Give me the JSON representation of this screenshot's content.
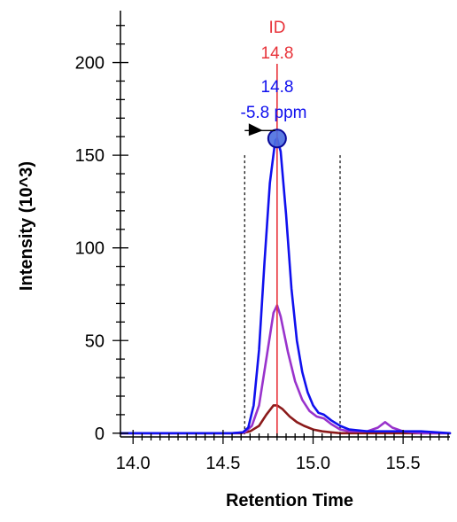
{
  "chart_data": {
    "type": "line",
    "title": "",
    "xlabel": "Retention Time",
    "ylabel": "Intensity (10^3)",
    "xlim": [
      13.93,
      15.76
    ],
    "ylim": [
      -2,
      228
    ],
    "x_ticks": [
      14.0,
      14.5,
      15.0,
      15.5
    ],
    "x_tick_labels": [
      "14.0",
      "14.5",
      "15.0",
      "15.5"
    ],
    "y_ticks": [
      0,
      50,
      100,
      150,
      200
    ],
    "y_tick_labels": [
      "0",
      "50",
      "100",
      "150",
      "200"
    ],
    "grid": false,
    "series": [
      {
        "color": "#1010ee",
        "x": [
          13.93,
          14.55,
          14.61,
          14.64,
          14.67,
          14.7,
          14.73,
          14.76,
          14.79,
          14.8,
          14.82,
          14.85,
          14.88,
          14.91,
          14.94,
          14.97,
          15.0,
          15.03,
          15.06,
          15.1,
          15.15,
          15.2,
          15.3,
          15.4,
          15.5,
          15.6,
          15.76
        ],
        "y": [
          0,
          0,
          0.5,
          3,
          15,
          45,
          92,
          135,
          158,
          159,
          152,
          118,
          78,
          50,
          33,
          22,
          15,
          11,
          10,
          7,
          4,
          2,
          1,
          1,
          1,
          1,
          0
        ]
      },
      {
        "color": "#9933cc",
        "x": [
          13.93,
          14.55,
          14.62,
          14.66,
          14.7,
          14.74,
          14.78,
          14.8,
          14.82,
          14.86,
          14.9,
          14.94,
          14.98,
          15.02,
          15.06,
          15.1,
          15.15,
          15.2,
          15.3,
          15.36,
          15.4,
          15.44,
          15.5,
          15.6,
          15.76
        ],
        "y": [
          0,
          0,
          0.5,
          4,
          15,
          40,
          65,
          69,
          63,
          44,
          28,
          18,
          12,
          9,
          8,
          5,
          2,
          1,
          1,
          3,
          6,
          3,
          1,
          0,
          0
        ]
      },
      {
        "color": "#8b1a1a",
        "x": [
          13.93,
          14.6,
          14.65,
          14.7,
          14.74,
          14.78,
          14.8,
          14.83,
          14.87,
          14.91,
          14.95,
          15.0,
          15.05,
          15.1,
          15.15,
          15.76
        ],
        "y": [
          0,
          0,
          1,
          4,
          10,
          15,
          15,
          13,
          9,
          6,
          4,
          2,
          1,
          0.5,
          0,
          0
        ]
      }
    ],
    "boundaries": [
      14.62,
      15.15
    ],
    "id_line": {
      "x": 14.8,
      "color": "#e8333a"
    },
    "peak_marker": {
      "x": 14.8,
      "y": 159
    },
    "annotations": {
      "id_label": "ID",
      "id_value": "14.8",
      "peak_rt": "14.8",
      "peak_ppm": "-5.8 ppm"
    }
  }
}
